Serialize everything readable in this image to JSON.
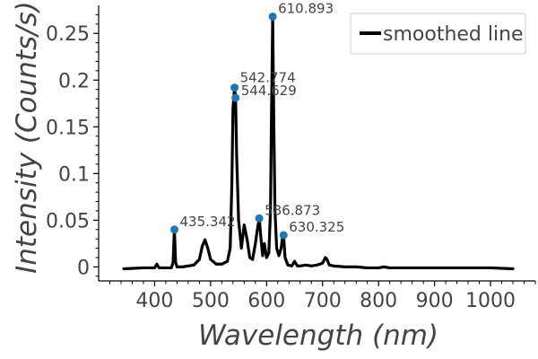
{
  "chart_data": {
    "type": "line",
    "xlabel": "Wavelength (nm)",
    "ylabel": "Intensity (Counts/s)",
    "xlim": [
      300,
      1080
    ],
    "ylim": [
      -0.015,
      0.28
    ],
    "x_ticks": [
      400,
      500,
      600,
      700,
      800,
      900,
      1000
    ],
    "x_tick_labels": [
      "400",
      "500",
      "600",
      "700",
      "800",
      "900",
      "1000"
    ],
    "y_ticks": [
      0,
      0.05,
      0.1,
      0.15,
      0.2,
      0.25
    ],
    "y_tick_labels": [
      "0",
      "0.05",
      "0.1",
      "0.15",
      "0.2",
      "0.25"
    ],
    "legend": {
      "position": "top-right",
      "entries": [
        "smoothed line"
      ]
    },
    "colors": {
      "line": "#000000",
      "peak_marker": "#1f77b4",
      "text": "#444444"
    },
    "series": [
      {
        "name": "smoothed line",
        "x": [
          345,
          380,
          400,
          404,
          408,
          420,
          430,
          433,
          435.3,
          437.5,
          440,
          450,
          470,
          480,
          485,
          490,
          495,
          500,
          510,
          520,
          530,
          535,
          538,
          540,
          542.8,
          544.6,
          546.5,
          550,
          555,
          560,
          565,
          570,
          575,
          580,
          583,
          586.9,
          590,
          593,
          596,
          600,
          604,
          607,
          608.5,
          610.9,
          613,
          615,
          618,
          622,
          626,
          628,
          630.3,
          633,
          638,
          645,
          650,
          655,
          660,
          670,
          680,
          690,
          700,
          705,
          708,
          712,
          720,
          740,
          760,
          780,
          800,
          810,
          820,
          850,
          900,
          950,
          1000,
          1040
        ],
        "y": [
          -0.002,
          -0.001,
          -0.001,
          0.003,
          -0.001,
          -0.001,
          -0.001,
          0.005,
          0.04,
          0.005,
          0.0,
          0.0,
          0.002,
          0.008,
          0.022,
          0.029,
          0.02,
          0.008,
          0.003,
          0.003,
          0.006,
          0.02,
          0.09,
          0.17,
          0.192,
          0.181,
          0.12,
          0.05,
          0.02,
          0.045,
          0.03,
          0.01,
          0.008,
          0.025,
          0.038,
          0.052,
          0.03,
          0.012,
          0.025,
          0.01,
          0.015,
          0.06,
          0.15,
          0.268,
          0.15,
          0.06,
          0.02,
          0.012,
          0.02,
          0.03,
          0.034,
          0.01,
          0.002,
          0.001,
          0.006,
          0.001,
          0.001,
          0.002,
          0.001,
          0.002,
          0.004,
          0.01,
          0.008,
          0.002,
          0.001,
          0.0,
          0.0,
          -0.001,
          -0.001,
          0.0,
          -0.001,
          -0.001,
          -0.001,
          -0.001,
          -0.001,
          -0.002
        ]
      }
    ],
    "peaks": [
      {
        "x": 435.342,
        "y": 0.04,
        "label": "435.342"
      },
      {
        "x": 542.774,
        "y": 0.192,
        "label": "542.774"
      },
      {
        "x": 544.629,
        "y": 0.181,
        "label": "544.629"
      },
      {
        "x": 586.873,
        "y": 0.052,
        "label": "586.873"
      },
      {
        "x": 610.893,
        "y": 0.268,
        "label": "610.893"
      },
      {
        "x": 630.325,
        "y": 0.034,
        "label": "630.325"
      }
    ]
  }
}
